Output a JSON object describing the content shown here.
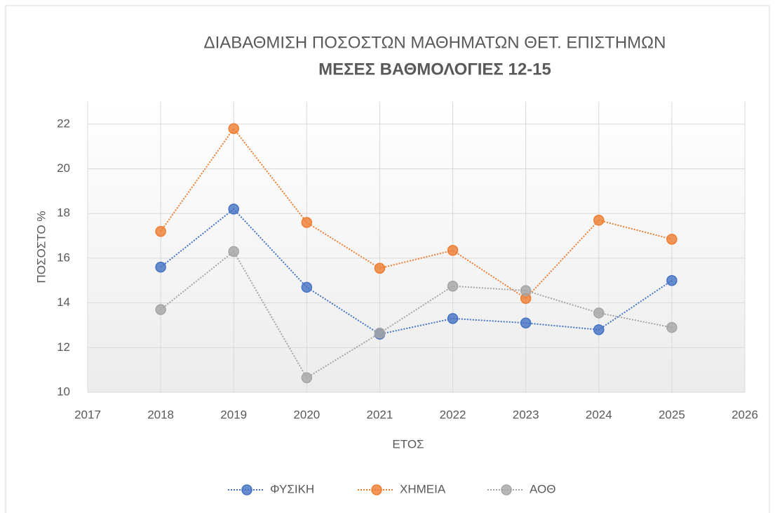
{
  "chart_data": {
    "type": "line",
    "title": "ΔΙΑΒΑΘΜΙΣΗ ΠΟΣΟΣΤΩΝ ΜΑΘΗΜΑΤΩΝ ΘΕΤ. ΕΠΙΣΤΗΜΩΝ",
    "subtitle": "ΜΕΣΕΣ ΒΑΘΜΟΛΟΓΙΕΣ 12-15",
    "x_label": "ΕΤΟΣ",
    "y_label": "ΠΟΣΟΣΤΟ %",
    "x": [
      2018,
      2019,
      2020,
      2021,
      2022,
      2023,
      2024,
      2025
    ],
    "series": [
      {
        "name": "ΦΥΣΙΚΗ",
        "color": "#4472c4",
        "values": [
          15.6,
          18.2,
          14.7,
          12.6,
          13.3,
          13.1,
          12.8,
          15.0
        ]
      },
      {
        "name": "ΧΗΜΕΙΑ",
        "color": "#ed7d31",
        "values": [
          17.2,
          21.8,
          17.6,
          15.55,
          16.35,
          14.2,
          17.7,
          16.85
        ]
      },
      {
        "name": "ΑΟΘ",
        "color": "#a5a5a5",
        "values": [
          13.7,
          16.3,
          10.65,
          12.65,
          14.75,
          14.55,
          13.55,
          12.9
        ]
      }
    ],
    "xlim": [
      2017,
      2026
    ],
    "xticks": [
      2017,
      2018,
      2019,
      2020,
      2021,
      2022,
      2023,
      2024,
      2025,
      2026
    ],
    "ylim": [
      10,
      23
    ],
    "yticks": [
      10,
      12,
      14,
      16,
      18,
      20,
      22
    ],
    "grid": true,
    "legend": "bottom"
  }
}
